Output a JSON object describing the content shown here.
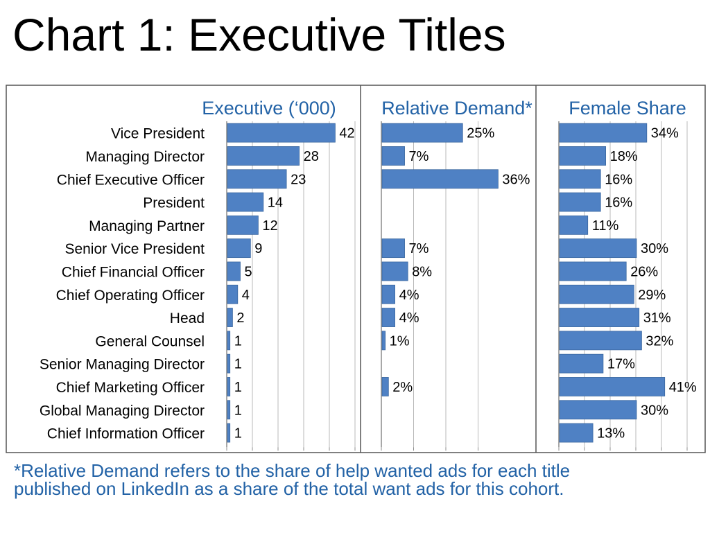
{
  "title": "Chart 1: Executive Titles",
  "footnote": {
    "line1": "*Relative Demand refers to the share of help wanted ads for each title",
    "line2": "published on LinkedIn as a share of the total want ads for this cohort."
  },
  "colors": {
    "bar": "#4f81c4",
    "bar_edge": "#3a679f",
    "header": "#2262a6",
    "axis": "#8c8c8c",
    "frame": "#555555"
  },
  "chart_data": {
    "type": "bar",
    "orientation": "horizontal",
    "categories": [
      "Vice President",
      "Managing Director",
      "Chief Executive Officer",
      "President",
      "Managing Partner",
      "Senior Vice President",
      "Chief Financial Officer",
      "Chief Operating Officer",
      "Head",
      "General Counsel",
      "Senior Managing Director",
      "Chief Marketing Officer",
      "Global Managing Director",
      "Chief Information Officer"
    ],
    "series": [
      {
        "name": "Executive (‘000)",
        "values": [
          42,
          28,
          23,
          14,
          12,
          9,
          5,
          4,
          2,
          1,
          1,
          1,
          1,
          1
        ],
        "labels": [
          "42",
          "28",
          "23",
          "14",
          "12",
          "9",
          "5",
          "4",
          "2",
          "1",
          "1",
          "1",
          "1",
          "1"
        ],
        "xlim": [
          0,
          50
        ]
      },
      {
        "name": "Relative Demand*",
        "values": [
          25,
          7,
          36,
          null,
          null,
          7,
          8,
          4,
          4,
          1,
          null,
          2,
          null,
          null
        ],
        "labels": [
          "25%",
          "7%",
          "36%",
          "",
          "",
          "7%",
          "8%",
          "4%",
          "4%",
          "1%",
          "",
          "2%",
          "",
          ""
        ],
        "xlim": [
          0,
          40
        ]
      },
      {
        "name": "Female Share",
        "values": [
          34,
          18,
          16,
          16,
          11,
          30,
          26,
          29,
          31,
          32,
          17,
          41,
          30,
          13
        ],
        "labels": [
          "34%",
          "18%",
          "16%",
          "16%",
          "11%",
          "30%",
          "26%",
          "29%",
          "31%",
          "32%",
          "17%",
          "41%",
          "30%",
          "13%"
        ],
        "xlim": [
          0,
          50
        ]
      }
    ]
  }
}
